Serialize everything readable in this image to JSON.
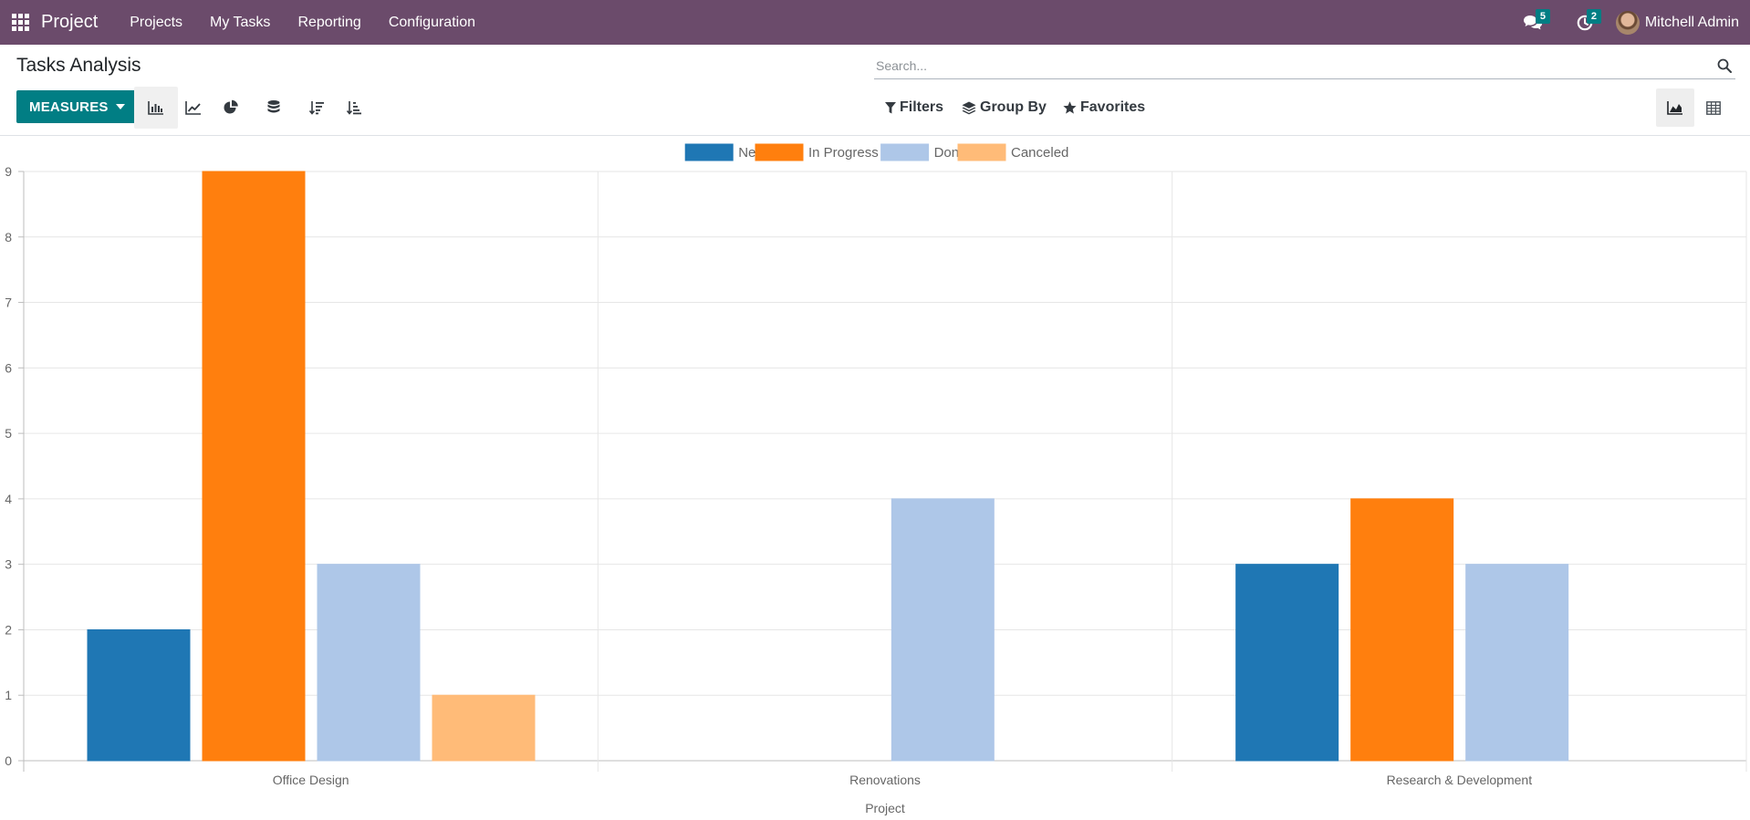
{
  "navbar": {
    "brand": "Project",
    "menu": [
      "Projects",
      "My Tasks",
      "Reporting",
      "Configuration"
    ],
    "messages_count": "5",
    "activities_count": "2",
    "user_name": "Mitchell Admin"
  },
  "control_panel": {
    "title": "Tasks Analysis",
    "search_placeholder": "Search...",
    "measures_label": "MEASURES",
    "filters_label": "Filters",
    "group_by_label": "Group By",
    "favorites_label": "Favorites"
  },
  "colors": {
    "navbar": "#6b4b6b",
    "primary": "#017e84",
    "new": "#1f77b4",
    "in_progress": "#ff7f0e",
    "done": "#aec7e8",
    "canceled": "#ffbb78"
  },
  "chart_data": {
    "type": "bar",
    "categories": [
      "Office Design",
      "Renovations",
      "Research & Development"
    ],
    "series": [
      {
        "name": "New",
        "values": [
          2,
          0,
          3
        ],
        "color": "#1f77b4"
      },
      {
        "name": "In Progress",
        "values": [
          9,
          0,
          4
        ],
        "color": "#ff7f0e"
      },
      {
        "name": "Done",
        "values": [
          3,
          4,
          3
        ],
        "color": "#aec7e8"
      },
      {
        "name": "Canceled",
        "values": [
          1,
          0,
          0
        ],
        "color": "#ffbb78"
      }
    ],
    "ylim": [
      0,
      9
    ],
    "y_ticks": [
      0,
      1,
      2,
      3,
      4,
      5,
      6,
      7,
      8,
      9
    ],
    "xlabel": "Project",
    "ylabel": "",
    "grid": true,
    "legend_position": "top-center"
  }
}
